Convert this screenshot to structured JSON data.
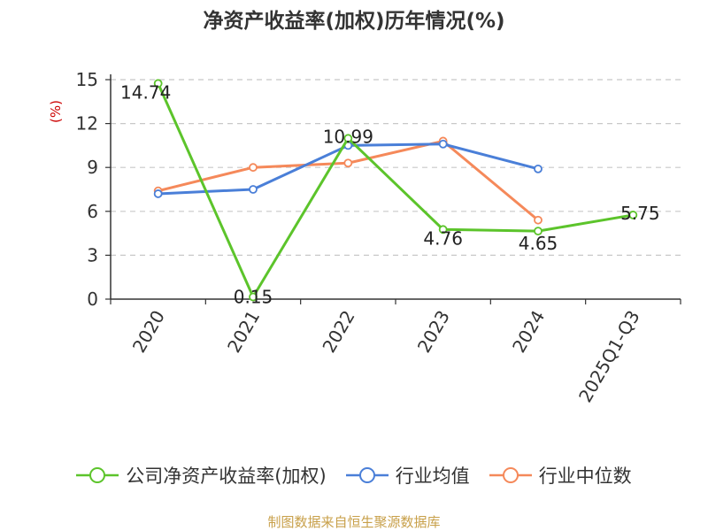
{
  "title": "净资产收益率(加权)历年情况(%)",
  "source": "制图数据来自恒生聚源数据库",
  "chart_data": {
    "type": "line",
    "title": "净资产收益率(加权)历年情况(%)",
    "ylabel": "(%)",
    "xlabel": "",
    "categories": [
      "2020",
      "2021",
      "2022",
      "2023",
      "2024",
      "2025Q1-Q3"
    ],
    "ylim": [
      0,
      15
    ],
    "yticks": [
      0,
      3,
      6,
      9,
      12,
      15
    ],
    "grid": true,
    "legend_position": "bottom",
    "series": [
      {
        "name": "公司净资产收益率(加权)",
        "color": "#5cc42b",
        "values": [
          14.74,
          0.15,
          10.99,
          4.76,
          4.65,
          5.75
        ],
        "labels": [
          "14.74",
          "0.15",
          "10.99",
          "4.76",
          "4.65",
          "5.75"
        ]
      },
      {
        "name": "行业均值",
        "color": "#4a7fd8",
        "values": [
          7.2,
          7.5,
          10.5,
          10.6,
          8.9,
          null
        ]
      },
      {
        "name": "行业中位数",
        "color": "#f5895a",
        "values": [
          7.4,
          9.0,
          9.3,
          10.8,
          5.4,
          null
        ]
      }
    ]
  }
}
